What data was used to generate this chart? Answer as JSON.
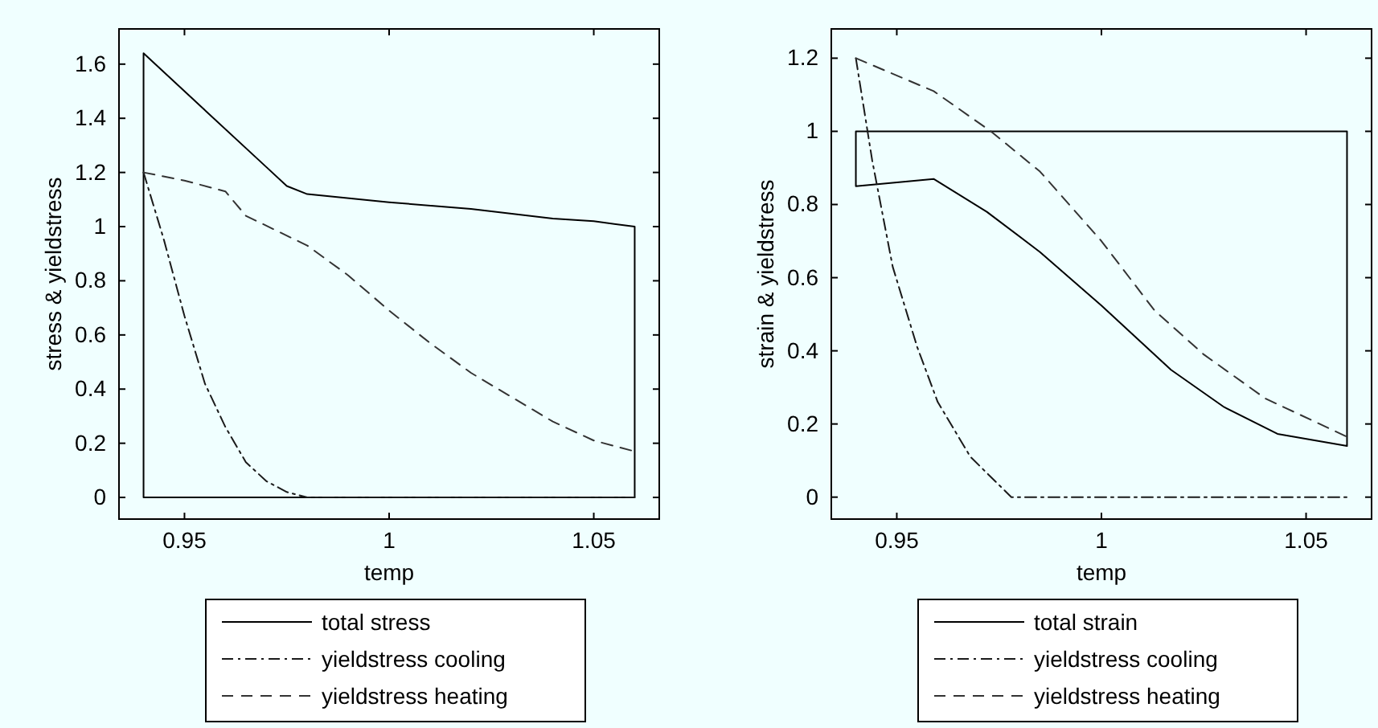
{
  "chart_data": [
    {
      "type": "line",
      "xlabel": "temp",
      "ylabel": "stress & yieldstress",
      "xlim": [
        0.934,
        1.066
      ],
      "ylim": [
        -0.08,
        1.73
      ],
      "xticks": [
        0.95,
        1,
        1.05
      ],
      "yticks": [
        0,
        0.2,
        0.4,
        0.6,
        0.8,
        1,
        1.2,
        1.4,
        1.6
      ],
      "legend": "bottom",
      "series": [
        {
          "name": "total stress",
          "color": "#000000",
          "line_style": "solid",
          "x": [
            0.94,
            1.06,
            null,
            0.94,
            0.94,
            0.97,
            0.975,
            0.98,
            1.0,
            1.02,
            1.04,
            1.05,
            1.06,
            1.06
          ],
          "values": [
            0,
            0,
            null,
            0,
            1.64,
            1.22,
            1.15,
            1.12,
            1.09,
            1.065,
            1.03,
            1.02,
            1.0,
            0
          ]
        },
        {
          "name": "yieldstress cooling",
          "color": "#1a1a1a",
          "line_style": "dashdot",
          "x": [
            0.94,
            0.945,
            0.95,
            0.955,
            0.96,
            0.965,
            0.97,
            0.975,
            0.98,
            1.06
          ],
          "values": [
            1.2,
            0.95,
            0.67,
            0.42,
            0.26,
            0.13,
            0.06,
            0.02,
            0,
            0
          ]
        },
        {
          "name": "yieldstress heating",
          "color": "#333333",
          "line_style": "dashed",
          "x": [
            0.94,
            0.95,
            0.96,
            0.965,
            0.98,
            0.99,
            1.0,
            1.01,
            1.02,
            1.03,
            1.04,
            1.05,
            1.06
          ],
          "values": [
            1.2,
            1.17,
            1.13,
            1.04,
            0.93,
            0.82,
            0.69,
            0.57,
            0.46,
            0.37,
            0.28,
            0.21,
            0.17
          ]
        }
      ]
    },
    {
      "type": "line",
      "xlabel": "temp",
      "ylabel": "strain & yieldstress",
      "xlim": [
        0.934,
        1.066
      ],
      "ylim": [
        -0.06,
        1.28
      ],
      "xticks": [
        0.95,
        1,
        1.05
      ],
      "yticks": [
        0,
        0.2,
        0.4,
        0.6,
        0.8,
        1,
        1.2
      ],
      "legend": "bottom",
      "series": [
        {
          "name": "total strain",
          "color": "#000000",
          "line_style": "solid",
          "x": [
            0.94,
            0.94,
            1.06,
            null,
            0.94,
            0.959,
            0.972,
            0.985,
            1.0,
            1.017,
            1.03,
            1.043,
            1.06,
            1.06
          ],
          "values": [
            0.85,
            1.0,
            1.0,
            null,
            0.85,
            0.87,
            0.78,
            0.67,
            0.524,
            0.348,
            0.246,
            0.173,
            0.14,
            1.0
          ]
        },
        {
          "name": "yieldstress cooling",
          "color": "#1a1a1a",
          "line_style": "dashdot",
          "x": [
            0.94,
            0.944,
            0.949,
            0.955,
            0.96,
            0.968,
            0.978,
            1.06
          ],
          "values": [
            1.2,
            0.92,
            0.63,
            0.41,
            0.26,
            0.11,
            0,
            0
          ]
        },
        {
          "name": "yieldstress heating",
          "color": "#333333",
          "line_style": "dashed",
          "x": [
            0.94,
            0.959,
            0.973,
            0.985,
            1.0,
            1.013,
            1.025,
            1.04,
            1.06
          ],
          "values": [
            1.2,
            1.11,
            1.0,
            0.89,
            0.7,
            0.51,
            0.39,
            0.27,
            0.165
          ]
        }
      ]
    }
  ]
}
